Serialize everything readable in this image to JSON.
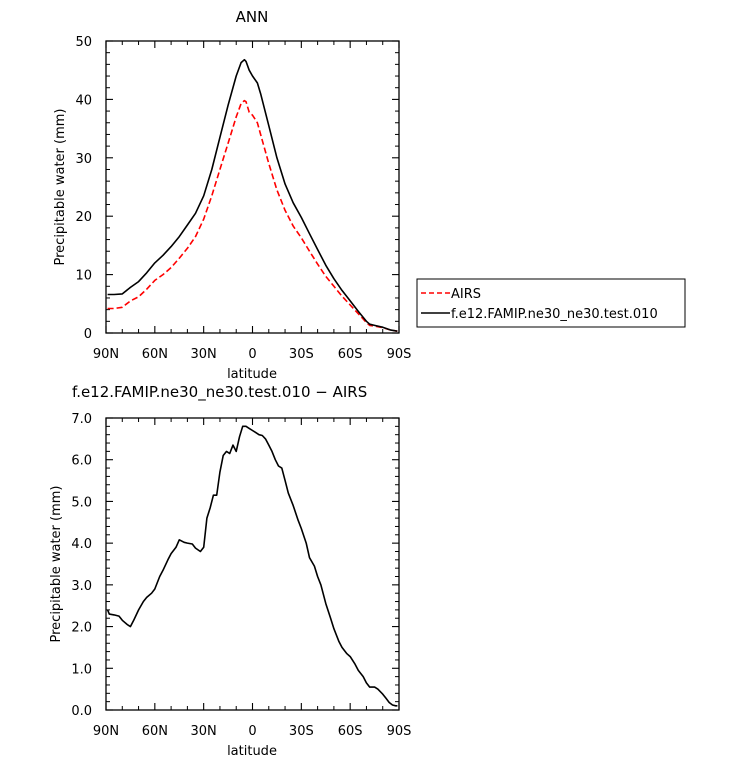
{
  "chart_data": [
    {
      "type": "line",
      "title": "ANN",
      "xlabel": "latitude",
      "ylabel": "Precipitable water (mm)",
      "xlim": [
        90,
        -90
      ],
      "ylim": [
        0,
        50
      ],
      "x_ticks": [
        90,
        60,
        30,
        0,
        -30,
        -60,
        -90
      ],
      "x_tick_labels": [
        "90N",
        "60N",
        "30N",
        "0",
        "30S",
        "60S",
        "90S"
      ],
      "y_ticks": [
        0,
        10,
        20,
        30,
        40,
        50
      ],
      "y_tick_labels": [
        "0",
        "10",
        "20",
        "30",
        "40",
        "50"
      ],
      "grid": false,
      "legend_position": "right",
      "series": [
        {
          "name": "AIRS",
          "color": "#ff0000",
          "style": "dashed",
          "x": [
            89,
            85,
            80,
            75,
            70,
            65,
            60,
            55,
            50,
            45,
            40,
            35,
            30,
            25,
            20,
            15,
            10,
            7,
            5,
            4,
            2,
            0,
            -3,
            -5,
            -10,
            -15,
            -20,
            -25,
            -30,
            -35,
            -40,
            -45,
            -50,
            -55,
            -60,
            -65,
            -70,
            -72,
            -75,
            -80,
            -85,
            -89
          ],
          "y": [
            4.2,
            4.2,
            4.4,
            5.5,
            6.2,
            7.5,
            9.0,
            10.0,
            11.2,
            12.8,
            14.5,
            16.5,
            19.5,
            23.5,
            28.0,
            32.5,
            37.0,
            39.3,
            39.8,
            39.6,
            37.8,
            37.3,
            36.0,
            34.0,
            29.0,
            24.5,
            21.0,
            18.3,
            16.3,
            14.0,
            11.8,
            9.7,
            8.0,
            6.3,
            4.8,
            3.3,
            1.8,
            1.3,
            1.2,
            0.9,
            0.5,
            0.3
          ]
        },
        {
          "name": "f.e12.FAMIP.ne30_ne30.test.010",
          "color": "#000000",
          "style": "solid",
          "x": [
            89,
            85,
            80,
            75,
            70,
            65,
            60,
            55,
            50,
            45,
            40,
            35,
            30,
            25,
            20,
            15,
            10,
            7,
            5,
            4,
            2,
            0,
            -3,
            -5,
            -10,
            -15,
            -20,
            -25,
            -30,
            -35,
            -40,
            -45,
            -50,
            -55,
            -60,
            -65,
            -70,
            -72,
            -75,
            -80,
            -85,
            -89
          ],
          "y": [
            6.6,
            6.6,
            6.7,
            7.8,
            8.8,
            10.3,
            12.0,
            13.3,
            14.8,
            16.5,
            18.5,
            20.5,
            23.5,
            28.0,
            33.5,
            39.0,
            44.0,
            46.3,
            46.8,
            46.5,
            45.0,
            44.0,
            42.8,
            41.0,
            35.5,
            30.0,
            25.5,
            22.3,
            19.8,
            17.0,
            14.3,
            11.6,
            9.3,
            7.3,
            5.5,
            3.7,
            2.0,
            1.5,
            1.3,
            1.0,
            0.5,
            0.3
          ]
        }
      ]
    },
    {
      "type": "line",
      "title": "f.e12.FAMIP.ne30_ne30.test.010 − AIRS",
      "xlabel": "latitude",
      "ylabel": "Precipitable water (mm)",
      "xlim": [
        90,
        -90
      ],
      "ylim": [
        0,
        7
      ],
      "x_ticks": [
        90,
        60,
        30,
        0,
        -30,
        -60,
        -90
      ],
      "x_tick_labels": [
        "90N",
        "60N",
        "30N",
        "0",
        "30S",
        "60S",
        "90S"
      ],
      "y_ticks": [
        0,
        1,
        2,
        3,
        4,
        5,
        6,
        7
      ],
      "y_tick_labels": [
        "0.0",
        "1.0",
        "2.0",
        "3.0",
        "4.0",
        "5.0",
        "6.0",
        "7.0"
      ],
      "grid": false,
      "series": [
        {
          "color": "#000000",
          "style": "solid",
          "x": [
            89,
            88,
            85,
            82,
            80,
            77,
            75,
            73,
            70,
            67,
            65,
            62,
            60,
            57,
            55,
            52,
            50,
            47,
            45,
            42,
            40,
            37,
            35,
            32,
            30,
            28,
            26,
            24,
            22,
            20,
            18,
            16,
            14,
            12,
            10,
            8,
            6,
            5,
            4,
            2,
            0,
            -2,
            -4,
            -6,
            -8,
            -10,
            -12,
            -14,
            -16,
            -18,
            -20,
            -22,
            -25,
            -28,
            -30,
            -33,
            -35,
            -38,
            -40,
            -42,
            -45,
            -48,
            -50,
            -53,
            -55,
            -58,
            -60,
            -63,
            -65,
            -68,
            -70,
            -72,
            -75,
            -77,
            -80,
            -82,
            -84,
            -86,
            -88,
            -89
          ],
          "y": [
            2.4,
            2.3,
            2.28,
            2.25,
            2.15,
            2.05,
            2.0,
            2.15,
            2.4,
            2.6,
            2.7,
            2.8,
            2.9,
            3.2,
            3.35,
            3.6,
            3.75,
            3.9,
            4.08,
            4.02,
            4.0,
            3.98,
            3.88,
            3.8,
            3.9,
            4.6,
            4.85,
            5.15,
            5.15,
            5.7,
            6.1,
            6.2,
            6.15,
            6.35,
            6.2,
            6.55,
            6.8,
            6.8,
            6.8,
            6.75,
            6.7,
            6.65,
            6.6,
            6.58,
            6.5,
            6.35,
            6.2,
            6.0,
            5.85,
            5.8,
            5.5,
            5.2,
            4.9,
            4.55,
            4.35,
            4.0,
            3.65,
            3.45,
            3.2,
            3.0,
            2.55,
            2.2,
            1.95,
            1.65,
            1.5,
            1.35,
            1.28,
            1.1,
            0.95,
            0.8,
            0.65,
            0.55,
            0.55,
            0.5,
            0.38,
            0.28,
            0.18,
            0.12,
            0.1,
            0.1
          ]
        }
      ]
    }
  ]
}
